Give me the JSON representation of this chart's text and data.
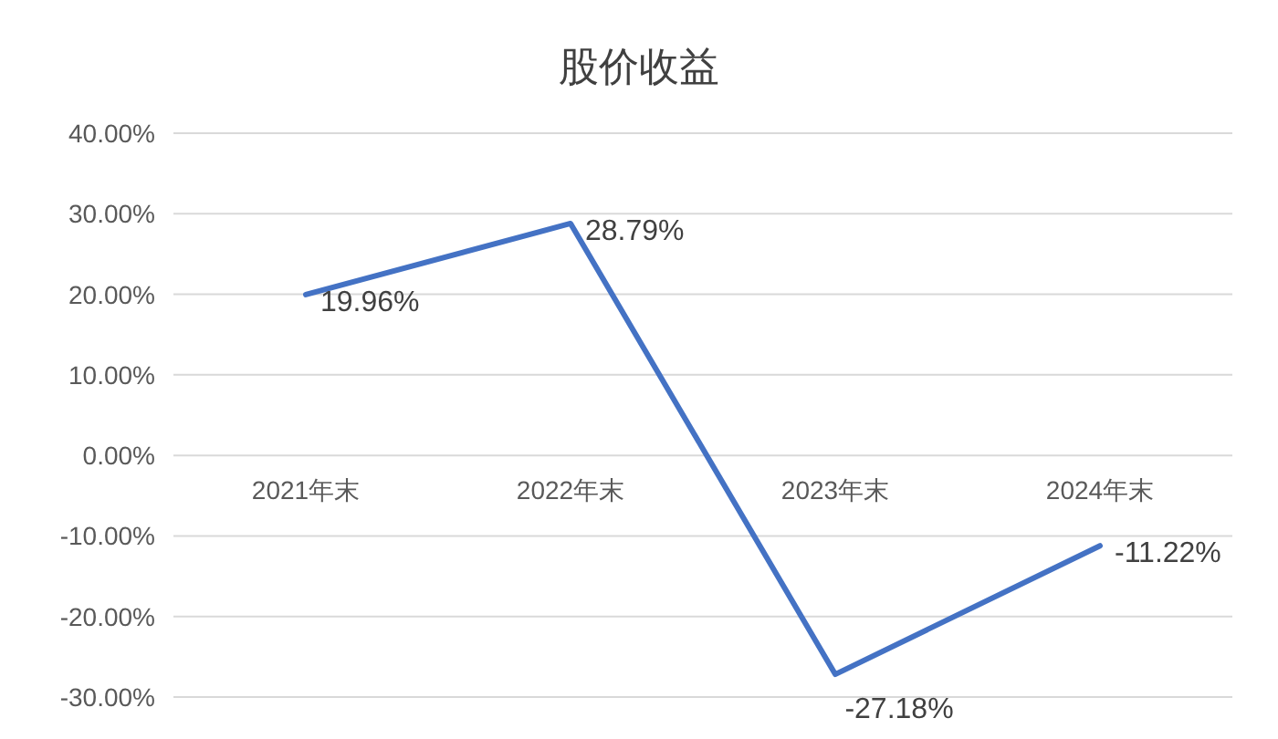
{
  "chart_data": {
    "type": "line",
    "title": "股价收益",
    "categories": [
      "2021年末",
      "2022年末",
      "2023年末",
      "2024年末"
    ],
    "series": [
      {
        "color": "#4472c4",
        "values": [
          19.96,
          28.79,
          -27.18,
          -11.22
        ],
        "value_labels": [
          "19.96%",
          "28.79%",
          "-27.18%",
          "-11.22%"
        ]
      }
    ],
    "ylim": [
      -30,
      40
    ],
    "yticks": [
      {
        "value": -30,
        "label": "-30.00%"
      },
      {
        "value": -20,
        "label": "-20.00%"
      },
      {
        "value": -10,
        "label": "-10.00%"
      },
      {
        "value": 0,
        "label": "0.00%"
      },
      {
        "value": 10,
        "label": "10.00%"
      },
      {
        "value": 20,
        "label": "20.00%"
      },
      {
        "value": 30,
        "label": "30.00%"
      },
      {
        "value": 40,
        "label": "40.00%"
      }
    ],
    "grid": "y",
    "marker": "none",
    "line_style": "solid"
  }
}
